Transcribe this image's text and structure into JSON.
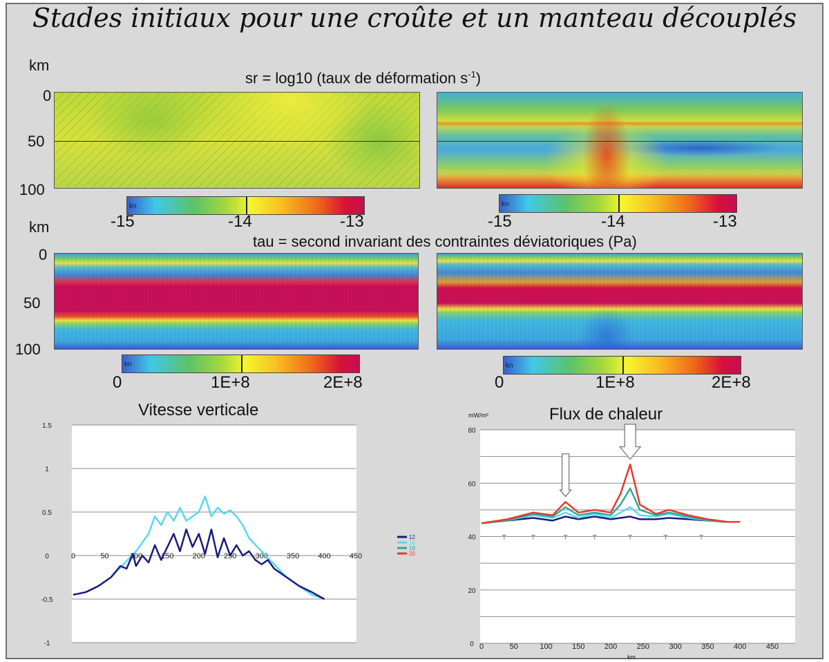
{
  "title": "Stades initiaux pour une croûte et un manteau découplés",
  "sr_section": {
    "caption_prefix": "sr = log10 (taux de déformation s",
    "caption_sup": "-1",
    "caption_suffix": ")",
    "y_unit": "km",
    "y_ticks": [
      "0",
      "50",
      "100"
    ],
    "colorbar_ticks": [
      "-15",
      "-14",
      "-13"
    ],
    "colorbar_chip": "kn"
  },
  "tau_section": {
    "caption": "tau = second invariant des contraintes déviatoriques (Pa)",
    "y_unit": "km",
    "y_ticks": [
      "0",
      "50",
      "100"
    ],
    "colorbar_ticks": [
      "0",
      "1E+8",
      "2E+8"
    ],
    "colorbar_chip": "kn"
  },
  "colors": {
    "panel_bg": "#d9d9d9",
    "scale_low": "#3a5fcd",
    "scale_mid": "#f5f530",
    "scale_high": "#c2104f"
  },
  "chart_data": [
    {
      "type": "line",
      "title": "Vitesse verticale",
      "xlabel": "",
      "ylabel": "",
      "xlim": [
        0,
        450
      ],
      "ylim": [
        -1,
        1.5
      ],
      "x_ticks": [
        "0",
        "50",
        "100",
        "150",
        "200",
        "250",
        "300",
        "350",
        "400",
        "450"
      ],
      "y_ticks": [
        "1.5",
        "1",
        "0.5",
        "0",
        "-0.5",
        "-1"
      ],
      "grid": true,
      "legend": "right",
      "series": [
        {
          "name": "12",
          "color": "#1a1a7a",
          "x": [
            0,
            20,
            40,
            60,
            75,
            85,
            95,
            100,
            110,
            120,
            130,
            140,
            150,
            160,
            170,
            180,
            190,
            200,
            210,
            220,
            230,
            240,
            250,
            260,
            270,
            280,
            290,
            300,
            310,
            320,
            340,
            360,
            380,
            400
          ],
          "y": [
            -0.45,
            -0.42,
            -0.35,
            -0.25,
            -0.12,
            -0.15,
            0.02,
            -0.12,
            0.0,
            -0.08,
            0.12,
            -0.05,
            0.1,
            0.25,
            0.05,
            0.3,
            0.1,
            0.25,
            0.02,
            0.3,
            -0.02,
            0.2,
            0.0,
            0.12,
            0.0,
            0.05,
            -0.05,
            -0.1,
            -0.05,
            -0.15,
            -0.25,
            -0.35,
            -0.42,
            -0.5
          ]
        },
        {
          "name": "16",
          "color": "#5ad8f0",
          "x": [
            0,
            20,
            40,
            60,
            80,
            100,
            120,
            130,
            140,
            150,
            160,
            170,
            180,
            190,
            200,
            210,
            220,
            230,
            240,
            250,
            260,
            270,
            280,
            300,
            320,
            340,
            360,
            380,
            400
          ],
          "y": [
            -0.45,
            -0.42,
            -0.35,
            -0.25,
            -0.1,
            0.05,
            0.25,
            0.45,
            0.35,
            0.5,
            0.4,
            0.55,
            0.4,
            0.45,
            0.5,
            0.68,
            0.45,
            0.55,
            0.48,
            0.52,
            0.45,
            0.35,
            0.2,
            0.05,
            -0.1,
            -0.25,
            -0.35,
            -0.45,
            -0.5
          ]
        }
      ],
      "legend_items": [
        {
          "name": "12",
          "color": "#1a1a7a"
        },
        {
          "name": "16",
          "color": "#5ad8f0"
        },
        {
          "name": "18",
          "color": "#2aa9a0"
        },
        {
          "name": "20",
          "color": "#e83a2a"
        }
      ]
    },
    {
      "type": "line",
      "title": "Flux de chaleur",
      "ylabel": "mW/m²",
      "xlabel": "km",
      "xlim": [
        0,
        450
      ],
      "ylim": [
        0,
        80
      ],
      "x_ticks": [
        "0",
        "50",
        "100",
        "150",
        "200",
        "250",
        "300",
        "350",
        "400",
        "450"
      ],
      "y_ticks": [
        "80",
        "60",
        "40",
        "20",
        "0"
      ],
      "grid": true,
      "series": [
        {
          "name": "12",
          "color": "#1a1a7a",
          "x": [
            0,
            40,
            80,
            110,
            130,
            150,
            175,
            200,
            215,
            230,
            245,
            270,
            290,
            320,
            350,
            380,
            400
          ],
          "y": [
            45,
            46,
            47,
            46,
            47.5,
            46.5,
            47.5,
            46.5,
            47,
            47.5,
            46.5,
            46.5,
            47,
            46.5,
            46,
            45.5,
            45.5
          ]
        },
        {
          "name": "16",
          "color": "#5ad8f0",
          "x": [
            0,
            40,
            80,
            110,
            130,
            150,
            175,
            200,
            215,
            230,
            245,
            270,
            290,
            320,
            350,
            380,
            400
          ],
          "y": [
            45,
            46,
            48,
            47,
            49,
            47,
            48.5,
            47,
            49,
            51,
            48,
            47.5,
            48.5,
            47,
            46,
            45.5,
            45.5
          ]
        },
        {
          "name": "18",
          "color": "#2aa9a0",
          "x": [
            0,
            40,
            80,
            110,
            130,
            150,
            175,
            200,
            215,
            230,
            245,
            270,
            290,
            320,
            350,
            380,
            400
          ],
          "y": [
            45,
            46,
            48.5,
            47.5,
            51,
            48,
            49,
            48,
            52,
            58,
            50,
            48,
            49,
            47.5,
            46,
            45.5,
            45.5
          ]
        },
        {
          "name": "20",
          "color": "#e83a2a",
          "x": [
            0,
            40,
            80,
            110,
            130,
            150,
            175,
            200,
            215,
            230,
            245,
            270,
            290,
            320,
            350,
            380,
            400
          ],
          "y": [
            45,
            46.5,
            49,
            48,
            53,
            49,
            50,
            49,
            56,
            67,
            52,
            48.5,
            50,
            48,
            46.5,
            45.5,
            45.5
          ]
        }
      ],
      "arrows_x": [
        130,
        230
      ],
      "ticks_x": [
        35,
        80,
        130,
        175,
        230,
        285,
        340
      ]
    }
  ]
}
